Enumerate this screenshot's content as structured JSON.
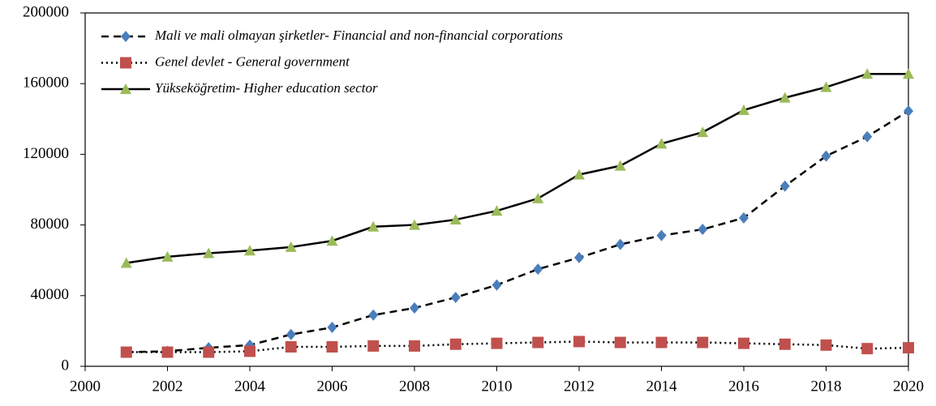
{
  "chart_data": {
    "type": "line",
    "x": [
      2001,
      2002,
      2003,
      2004,
      2005,
      2006,
      2007,
      2008,
      2009,
      2010,
      2011,
      2012,
      2013,
      2014,
      2015,
      2016,
      2017,
      2018,
      2019,
      2020
    ],
    "series": [
      {
        "name": "Mali ve mali olmayan şirketler- Financial and non-financial corporations",
        "color": "#4a7ebb",
        "line_color": "#000000",
        "line_style": "dashed",
        "marker": "diamond",
        "values": [
          8000,
          8500,
          10500,
          12000,
          18000,
          22000,
          29000,
          33000,
          39000,
          46000,
          55000,
          61500,
          69000,
          74000,
          77500,
          84000,
          102000,
          119000,
          130000,
          144500
        ]
      },
      {
        "name": "Genel devlet - General government",
        "color": "#c0504d",
        "line_color": "#000000",
        "line_style": "dotted",
        "marker": "square",
        "values": [
          8000,
          8000,
          8000,
          8500,
          11000,
          11000,
          11500,
          11500,
          12500,
          13000,
          13500,
          14000,
          13500,
          13500,
          13500,
          13000,
          12500,
          12000,
          10000,
          10500
        ]
      },
      {
        "name": "Yükseköğretim- Higher education sector",
        "color": "#9bbb59",
        "line_color": "#000000",
        "line_style": "solid",
        "marker": "triangle",
        "values": [
          58500,
          62000,
          64000,
          65500,
          67500,
          71000,
          79000,
          80000,
          83000,
          88000,
          95000,
          108500,
          113500,
          126000,
          132500,
          145000,
          152000,
          158000,
          165500,
          165500
        ]
      }
    ],
    "xlim": [
      2000,
      2020
    ],
    "xticks": [
      2000,
      2002,
      2004,
      2006,
      2008,
      2010,
      2012,
      2014,
      2016,
      2018,
      2020
    ],
    "ylim": [
      0,
      200000
    ],
    "yticks": [
      0,
      40000,
      80000,
      120000,
      160000,
      200000
    ],
    "grid": false,
    "legend": "top-left"
  }
}
